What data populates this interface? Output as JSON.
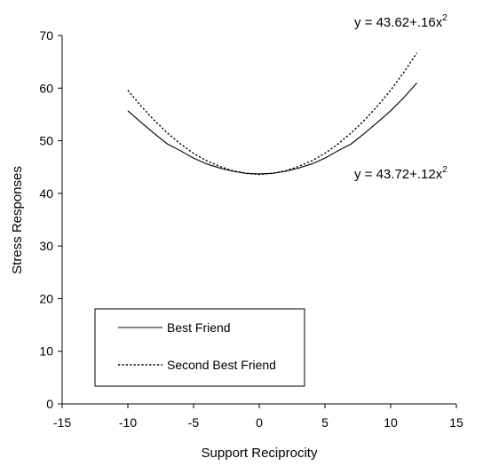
{
  "chart_data": {
    "type": "line",
    "title": "",
    "xlabel": "Support Reciprocity",
    "ylabel": "Stress Responses",
    "xlim": [
      -15,
      15
    ],
    "ylim": [
      0,
      70
    ],
    "xticks": [
      -15,
      -10,
      -5,
      0,
      5,
      10,
      15
    ],
    "yticks": [
      0,
      10,
      20,
      30,
      40,
      50,
      60,
      70
    ],
    "xtick_labels": [
      "-15",
      "-10",
      "-5",
      "0",
      "5",
      "10",
      "15"
    ],
    "ytick_labels": [
      "0",
      "10",
      "20",
      "30",
      "40",
      "50",
      "60",
      "70"
    ],
    "grid": false,
    "legend_position": "bottom-left",
    "series": [
      {
        "name": "Best Friend",
        "line_style": "solid",
        "color": "#000000",
        "x": [
          -10,
          -9,
          -8,
          -7,
          -6,
          -5,
          -4,
          -3,
          -2,
          -1,
          0,
          1,
          2,
          3,
          4,
          5,
          6,
          7,
          8,
          9,
          10,
          11,
          12
        ],
        "values": [
          55.7,
          53.5,
          51.4,
          49.4,
          48.1,
          46.7,
          45.6,
          44.8,
          44.2,
          43.8,
          43.7,
          43.8,
          44.2,
          44.8,
          45.6,
          46.7,
          48.1,
          49.4,
          51.4,
          53.5,
          55.7,
          58.2,
          61.0
        ]
      },
      {
        "name": "Second Best Friend",
        "line_style": "dotted",
        "color": "#000000",
        "x": [
          -10,
          -9,
          -8,
          -7,
          -6,
          -5,
          -4,
          -3,
          -2,
          -1,
          0,
          1,
          2,
          3,
          4,
          5,
          6,
          7,
          8,
          9,
          10,
          11,
          12
        ],
        "values": [
          59.6,
          56.6,
          53.9,
          51.5,
          49.4,
          47.6,
          46.2,
          45.1,
          44.3,
          43.8,
          43.6,
          43.8,
          44.3,
          45.1,
          46.2,
          47.6,
          49.4,
          51.5,
          53.9,
          56.6,
          59.6,
          63.0,
          66.7
        ]
      }
    ],
    "annotations": [
      {
        "name": "eq-second-best",
        "base": "y = 43.62+.16x",
        "sup": "2"
      },
      {
        "name": "eq-best",
        "base": "y = 43.72+.12x",
        "sup": "2"
      }
    ]
  }
}
